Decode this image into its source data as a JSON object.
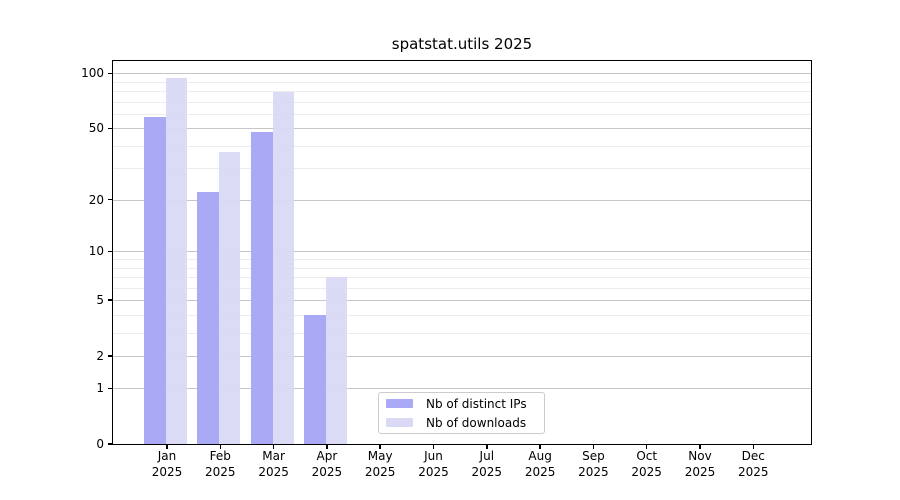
{
  "chart_data": {
    "type": "bar",
    "title": "spatstat.utils 2025",
    "xlabel": "",
    "ylabel": "",
    "months": [
      "Jan",
      "Feb",
      "Mar",
      "Apr",
      "May",
      "Jun",
      "Jul",
      "Aug",
      "Sep",
      "Oct",
      "Nov",
      "Dec"
    ],
    "year_label": "2025",
    "categories": [
      "Jan 2025",
      "Feb 2025",
      "Mar 2025",
      "Apr 2025",
      "May 2025",
      "Jun 2025",
      "Jul 2025",
      "Aug 2025",
      "Sep 2025",
      "Oct 2025",
      "Nov 2025",
      "Dec 2025"
    ],
    "series": [
      {
        "name": "Nb of distinct IPs",
        "color": "#a9a9f6",
        "values": [
          58,
          22,
          48,
          4,
          null,
          null,
          null,
          null,
          null,
          null,
          null,
          null
        ]
      },
      {
        "name": "Nb of downloads",
        "color": "#d9d9f6",
        "values": [
          95,
          37,
          79,
          7,
          null,
          null,
          null,
          null,
          null,
          null,
          null,
          null
        ]
      }
    ],
    "y_scale": "log1p",
    "y_ticks": [
      0,
      1,
      2,
      5,
      10,
      20,
      50,
      100
    ],
    "y_minor_gridlines": [
      3,
      4,
      6,
      7,
      8,
      9,
      30,
      40,
      60,
      70,
      80,
      90
    ],
    "ylim": [
      0,
      117
    ],
    "grid": "horizontal",
    "legend_position": "lower center inside axes"
  },
  "colors": {
    "background": "#ffffff",
    "axis": "#000000",
    "major_grid": "#c6c6c6",
    "minor_grid": "#ececec",
    "legend_border": "#cccccc",
    "text": "#000000"
  }
}
